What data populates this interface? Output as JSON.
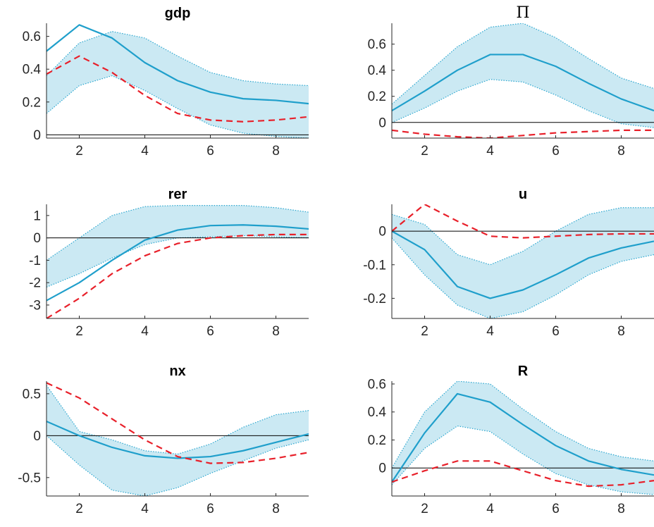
{
  "colors": {
    "median_line": "#1f9fcb",
    "band_fill": "#cbe9f3",
    "band_edge": "#2aa6cf",
    "model_line": "#e8202a",
    "zero_line": "#000000",
    "axis": "#262626"
  },
  "chart_data": [
    {
      "type": "line",
      "title": "gdp",
      "x": [
        1,
        2,
        3,
        4,
        5,
        6,
        7,
        8,
        9
      ],
      "xlim": [
        1,
        9
      ],
      "ylim": [
        -0.02,
        0.68
      ],
      "xticks": [
        2,
        4,
        6,
        8
      ],
      "yticks": [
        0,
        0.2,
        0.4,
        0.6
      ],
      "ytick_labels": [
        "0",
        "0.2",
        "0.4",
        "0.6"
      ],
      "band": {
        "lower": [
          0.13,
          0.3,
          0.36,
          0.27,
          0.16,
          0.06,
          0.01,
          -0.01,
          -0.02
        ],
        "upper": [
          0.36,
          0.56,
          0.63,
          0.59,
          0.48,
          0.38,
          0.33,
          0.31,
          0.3
        ]
      },
      "series": [
        {
          "style": "solid",
          "values": [
            0.51,
            0.67,
            0.59,
            0.44,
            0.33,
            0.26,
            0.22,
            0.21,
            0.19
          ]
        },
        {
          "style": "dashed",
          "values": [
            0.37,
            0.48,
            0.38,
            0.24,
            0.13,
            0.09,
            0.08,
            0.09,
            0.11
          ]
        }
      ]
    },
    {
      "type": "line",
      "title": "Π",
      "title_serif": true,
      "x": [
        1,
        2,
        3,
        4,
        5,
        6,
        7,
        8,
        9
      ],
      "xlim": [
        1,
        9
      ],
      "ylim": [
        -0.12,
        0.76
      ],
      "xticks": [
        2,
        4,
        6,
        8
      ],
      "yticks": [
        0,
        0.2,
        0.4,
        0.6
      ],
      "ytick_labels": [
        "0",
        "0.2",
        "0.4",
        "0.6"
      ],
      "band": {
        "lower": [
          0.0,
          0.11,
          0.24,
          0.33,
          0.31,
          0.21,
          0.09,
          -0.01,
          -0.04
        ],
        "upper": [
          0.14,
          0.36,
          0.58,
          0.73,
          0.76,
          0.65,
          0.49,
          0.34,
          0.26
        ]
      },
      "series": [
        {
          "style": "solid",
          "values": [
            0.09,
            0.24,
            0.4,
            0.52,
            0.52,
            0.43,
            0.3,
            0.18,
            0.09
          ]
        },
        {
          "style": "dashed",
          "values": [
            -0.06,
            -0.09,
            -0.11,
            -0.12,
            -0.1,
            -0.08,
            -0.07,
            -0.06,
            -0.06
          ]
        }
      ]
    },
    {
      "type": "line",
      "title": "rer",
      "x": [
        1,
        2,
        3,
        4,
        5,
        6,
        7,
        8,
        9
      ],
      "xlim": [
        1,
        9
      ],
      "ylim": [
        -3.6,
        1.5
      ],
      "xticks": [
        2,
        4,
        6,
        8
      ],
      "yticks": [
        -3,
        -2,
        -1,
        0,
        1
      ],
      "ytick_labels": [
        "-3",
        "-2",
        "-1",
        "0",
        "1"
      ],
      "band": {
        "lower": [
          -2.2,
          -1.6,
          -0.9,
          -0.3,
          0.0,
          0.05,
          0.1,
          0.05,
          0.0
        ],
        "upper": [
          -1.0,
          0.0,
          1.0,
          1.4,
          1.45,
          1.45,
          1.45,
          1.35,
          1.15
        ]
      },
      "series": [
        {
          "style": "solid",
          "values": [
            -2.8,
            -2.0,
            -1.0,
            -0.1,
            0.35,
            0.55,
            0.58,
            0.52,
            0.4
          ]
        },
        {
          "style": "dashed",
          "values": [
            -3.6,
            -2.7,
            -1.6,
            -0.8,
            -0.25,
            0.0,
            0.1,
            0.15,
            0.15
          ]
        }
      ]
    },
    {
      "type": "line",
      "title": "u",
      "x": [
        1,
        2,
        3,
        4,
        5,
        6,
        7,
        8,
        9
      ],
      "xlim": [
        1,
        9
      ],
      "ylim": [
        -0.26,
        0.08
      ],
      "xticks": [
        2,
        4,
        6,
        8
      ],
      "yticks": [
        -0.2,
        -0.1,
        0
      ],
      "ytick_labels": [
        "-0.2",
        "-0.1",
        "0"
      ],
      "band": {
        "lower": [
          -0.02,
          -0.13,
          -0.22,
          -0.26,
          -0.24,
          -0.19,
          -0.13,
          -0.09,
          -0.07
        ],
        "upper": [
          0.05,
          0.02,
          -0.07,
          -0.1,
          -0.06,
          0.0,
          0.05,
          0.07,
          0.07
        ]
      },
      "series": [
        {
          "style": "solid",
          "values": [
            0.0,
            -0.055,
            -0.165,
            -0.2,
            -0.175,
            -0.13,
            -0.08,
            -0.05,
            -0.03
          ]
        },
        {
          "style": "dashed",
          "values": [
            0.0,
            0.08,
            0.03,
            -0.015,
            -0.02,
            -0.015,
            -0.01,
            -0.008,
            -0.008
          ]
        }
      ]
    },
    {
      "type": "line",
      "title": "nx",
      "x": [
        1,
        2,
        3,
        4,
        5,
        6,
        7,
        8,
        9
      ],
      "xlim": [
        1,
        9
      ],
      "ylim": [
        -0.72,
        0.65
      ],
      "xticks": [
        2,
        4,
        6,
        8
      ],
      "yticks": [
        -0.5,
        0,
        0.5
      ],
      "ytick_labels": [
        "-0.5",
        "0",
        "0.5"
      ],
      "band": {
        "lower": [
          0.0,
          -0.35,
          -0.65,
          -0.72,
          -0.62,
          -0.45,
          -0.3,
          -0.15,
          -0.05
        ],
        "upper": [
          0.6,
          0.05,
          -0.05,
          -0.18,
          -0.22,
          -0.1,
          0.1,
          0.25,
          0.3
        ]
      },
      "series": [
        {
          "style": "solid",
          "values": [
            0.17,
            0.0,
            -0.14,
            -0.24,
            -0.27,
            -0.25,
            -0.18,
            -0.08,
            0.02
          ]
        },
        {
          "style": "dashed",
          "values": [
            0.63,
            0.45,
            0.2,
            -0.05,
            -0.25,
            -0.33,
            -0.32,
            -0.27,
            -0.2
          ]
        }
      ]
    },
    {
      "type": "line",
      "title": "R",
      "x": [
        1,
        2,
        3,
        4,
        5,
        6,
        7,
        8,
        9
      ],
      "xlim": [
        1,
        9
      ],
      "ylim": [
        -0.2,
        0.62
      ],
      "xticks": [
        2,
        4,
        6,
        8
      ],
      "yticks": [
        0,
        0.2,
        0.4,
        0.6
      ],
      "ytick_labels": [
        "0",
        "0.2",
        "0.4",
        "0.6"
      ],
      "band": {
        "lower": [
          -0.12,
          0.14,
          0.3,
          0.26,
          0.1,
          -0.04,
          -0.12,
          -0.17,
          -0.19
        ],
        "upper": [
          0.0,
          0.4,
          0.62,
          0.6,
          0.42,
          0.26,
          0.14,
          0.08,
          0.05
        ]
      },
      "series": [
        {
          "style": "solid",
          "values": [
            -0.1,
            0.25,
            0.53,
            0.47,
            0.31,
            0.16,
            0.05,
            -0.01,
            -0.05
          ]
        },
        {
          "style": "dashed",
          "values": [
            -0.1,
            -0.02,
            0.05,
            0.05,
            -0.02,
            -0.09,
            -0.13,
            -0.12,
            -0.09
          ]
        }
      ]
    }
  ]
}
